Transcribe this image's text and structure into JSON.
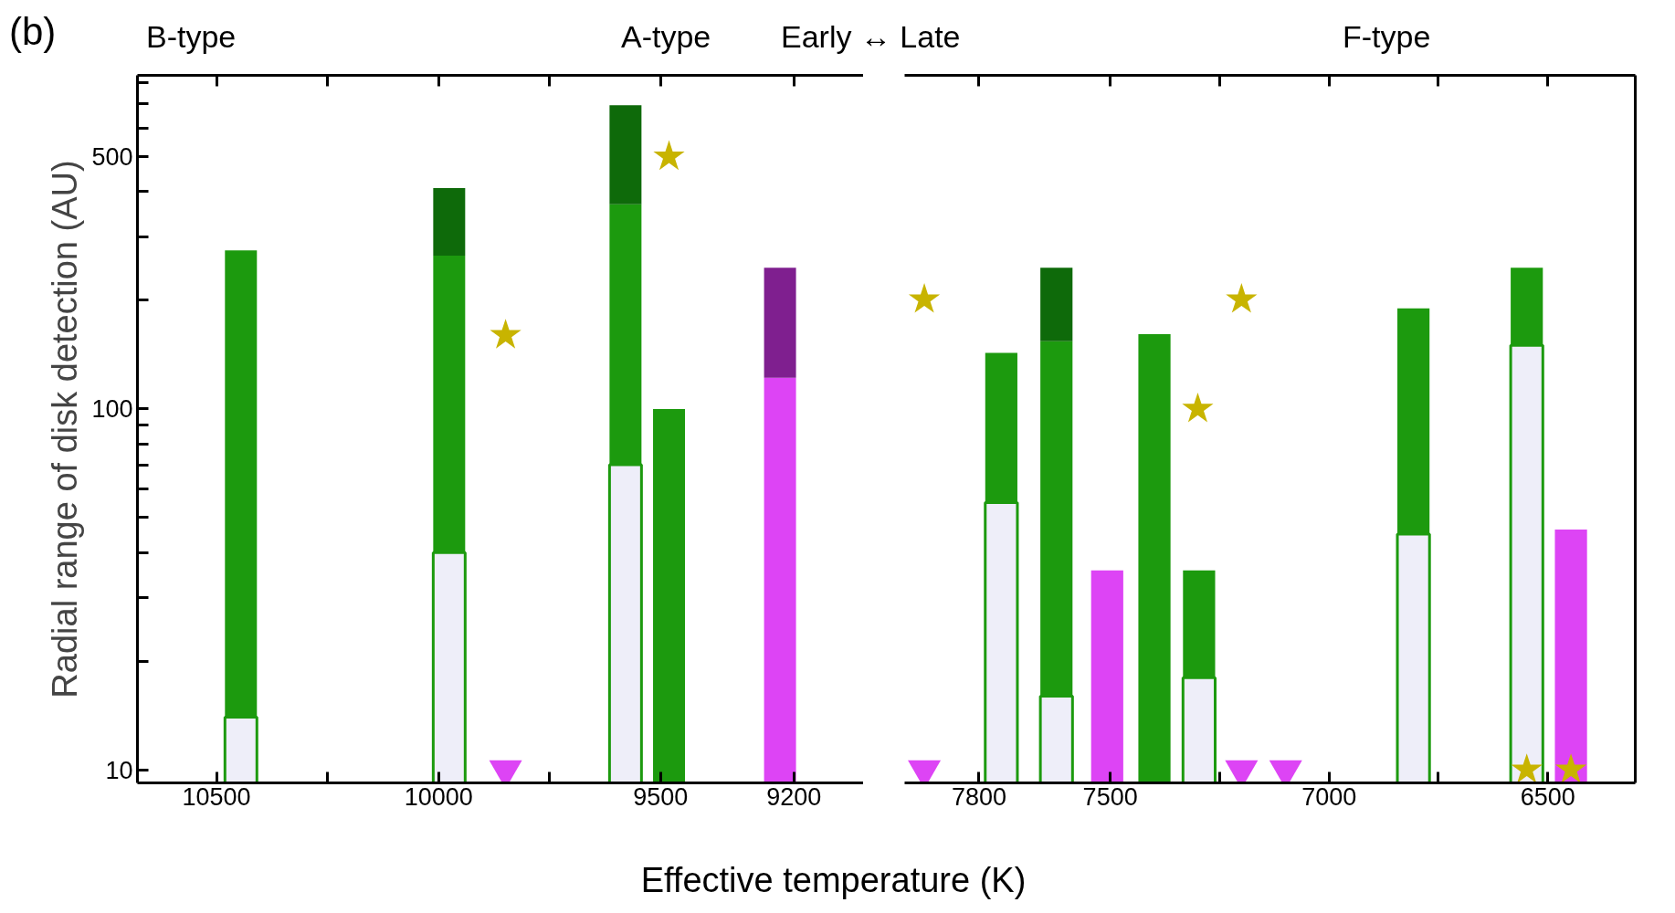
{
  "chart_data": [
    {
      "type": "bar",
      "stacked": true,
      "log": true,
      "grid": false,
      "xlabel": "Effective temperature (K)",
      "ylabel": "Radial range of disk detection (AU)",
      "annotations": [
        "(b)",
        "B-type",
        "A-type"
      ],
      "x": [
        10445,
        9976,
        9579,
        9481,
        9231
      ],
      "xlim": [
        10678,
        9043
      ],
      "xticks": [
        10500,
        {
          "value": 10250,
          "label": null
        },
        10000,
        {
          "value": 9750,
          "label": null
        },
        9500,
        9200
      ],
      "ylim": [
        9.2,
        840
      ],
      "yticks": [
        10,
        {
          "value": 20,
          "label": null
        },
        {
          "value": 30,
          "label": null
        },
        {
          "value": 40,
          "label": null
        },
        {
          "value": 50,
          "label": null
        },
        {
          "value": 60,
          "label": null
        },
        {
          "value": 70,
          "label": null
        },
        {
          "value": 80,
          "label": null
        },
        {
          "value": 90,
          "label": null
        },
        100,
        {
          "value": 200,
          "label": null
        },
        {
          "value": 300,
          "label": null
        },
        {
          "value": 400,
          "label": null
        },
        500,
        {
          "value": 600,
          "label": null
        },
        {
          "value": 700,
          "label": null
        },
        {
          "value": 800,
          "label": null
        }
      ],
      "series": [
        {
          "color": "#eeeef9",
          "values": [
            14,
            40,
            70,
            null,
            null
          ]
        },
        {
          "color": "#1c9a0e",
          "values": [
            261,
            226,
            299,
            100,
            null
          ]
        },
        {
          "color": "#0e6a0a",
          "values": [
            null,
            143,
            325,
            null,
            null
          ]
        },
        {
          "color": "#dd44f5",
          "values": [
            null,
            null,
            null,
            null,
            122
          ]
        },
        {
          "color": "#7f1f8f",
          "values": [
            null,
            null,
            null,
            null,
            124
          ]
        },
        {
          "type": "scatter",
          "marker": "star",
          "color": "#c8b400",
          "x": [
            9849,
            9481
          ],
          "values": [
            160,
            500
          ]
        },
        {
          "type": "scatter",
          "marker": "triangle",
          "color": "#dd44f5",
          "x": [
            9849
          ],
          "values": [
            10
          ]
        }
      ]
    },
    {
      "type": "bar",
      "stacked": true,
      "log": true,
      "grid": false,
      "tick_labels": "x",
      "annotations": [
        "Early ↔ Late",
        "F-type"
      ],
      "x": [
        7749,
        7623,
        7507,
        7399,
        7297,
        6807,
        6548,
        6447
      ],
      "xlim": [
        7970,
        6300
      ],
      "xticks": [
        7800,
        7500,
        {
          "value": 7250,
          "label": null
        },
        7000,
        {
          "value": 6750,
          "label": null
        },
        6500
      ],
      "ylim": [
        9.2,
        840
      ],
      "series": [
        {
          "color": "#eeeef9",
          "values": [
            55,
            16,
            null,
            null,
            18,
            45,
            150,
            null
          ]
        },
        {
          "color": "#1c9a0e",
          "values": [
            88,
            138,
            null,
            161,
            17.7,
            145,
            96,
            null
          ]
        },
        {
          "color": "#0e6a0a",
          "values": [
            null,
            92,
            null,
            null,
            null,
            null,
            null,
            null
          ]
        },
        {
          "color": "#dd44f5",
          "values": [
            null,
            null,
            35.7,
            null,
            null,
            null,
            null,
            46.3
          ]
        },
        {
          "type": "scatter",
          "marker": "star",
          "color": "#c8b400",
          "x": [
            7925,
            7200,
            7300,
            6548,
            6447
          ],
          "values": [
            201,
            201,
            100,
            10,
            10
          ]
        },
        {
          "type": "scatter",
          "marker": "triangle",
          "color": "#dd44f5",
          "x": [
            7925,
            7200,
            7099
          ],
          "values": [
            10,
            10,
            10
          ]
        }
      ]
    }
  ]
}
